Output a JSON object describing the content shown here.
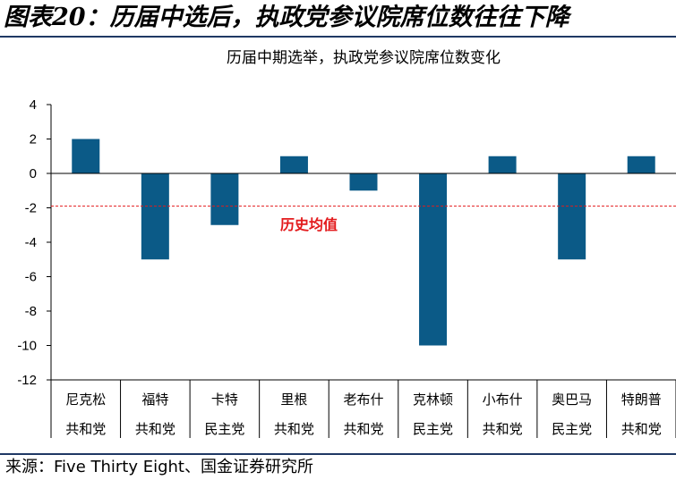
{
  "figure": {
    "title": "图表20：历届中选后，执政党参议院席位数往往下降",
    "source": "来源：Five Thirty Eight、国金证券研究所"
  },
  "chart_data": {
    "type": "bar",
    "title": "历届中期选举，执政党参议院席位数变化",
    "categories": [
      [
        "尼克松",
        "共和党"
      ],
      [
        "福特",
        "共和党"
      ],
      [
        "卡特",
        "民主党"
      ],
      [
        "里根",
        "共和党"
      ],
      [
        "老布什",
        "共和党"
      ],
      [
        "克林顿",
        "民主党"
      ],
      [
        "小布什",
        "共和党"
      ],
      [
        "奥巴马",
        "民主党"
      ],
      [
        "特朗普",
        "共和党"
      ]
    ],
    "values": [
      2,
      -5,
      -3,
      1,
      -1,
      -10,
      1,
      -5,
      1
    ],
    "ylim": [
      -12,
      4
    ],
    "yticks": [
      4,
      2,
      0,
      -2,
      -4,
      -6,
      -8,
      -10,
      -12
    ],
    "reference_line": {
      "value": -1.9,
      "label": "历史均值",
      "color": "#e31a1c"
    },
    "bar_color": "#0b5a87",
    "grid": false
  }
}
